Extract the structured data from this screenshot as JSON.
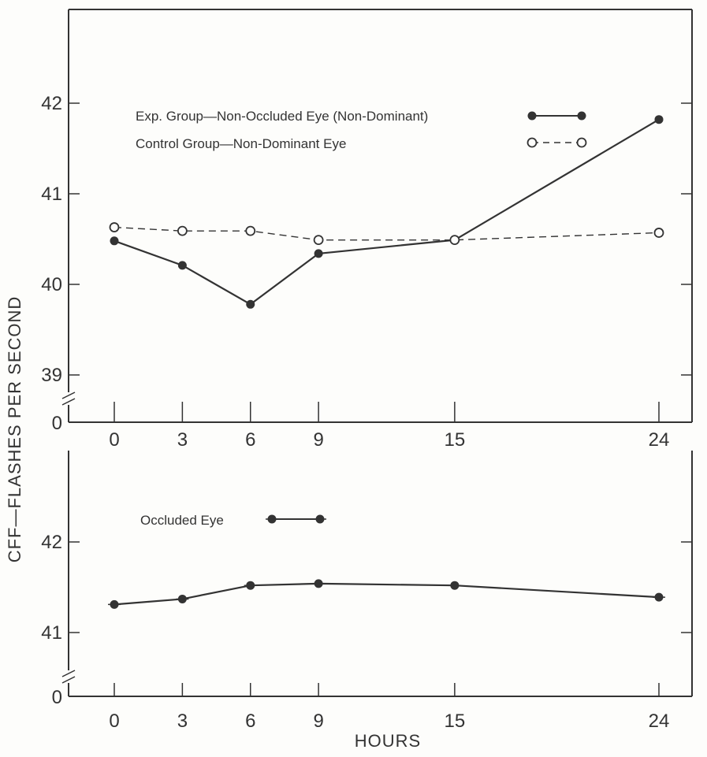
{
  "chart_data": [
    {
      "type": "line",
      "panel": "top",
      "x": [
        0,
        3,
        6,
        9,
        15,
        24
      ],
      "xticks": [
        "0",
        "3",
        "6",
        "9",
        "15",
        "24"
      ],
      "yticks": [
        "39",
        "40",
        "41",
        "42"
      ],
      "yzero_label": "0",
      "ylim": [
        38.8,
        43
      ],
      "series": [
        {
          "name": "Exp. Group—Non-Occluded Eye (Non-Dominant)",
          "values": [
            40.48,
            40.21,
            39.78,
            40.34,
            40.49,
            41.82
          ],
          "marker": "filled",
          "line": "solid"
        },
        {
          "name": "Control Group—Non-Dominant Eye",
          "values": [
            40.63,
            40.59,
            40.59,
            40.49,
            40.49,
            40.57
          ],
          "marker": "open",
          "line": "dashed"
        }
      ]
    },
    {
      "type": "line",
      "panel": "bottom",
      "x": [
        0,
        3,
        6,
        9,
        15,
        24
      ],
      "xticks": [
        "0",
        "3",
        "6",
        "9",
        "15",
        "24"
      ],
      "yticks": [
        "41",
        "42"
      ],
      "yzero_label": "0",
      "ylim": [
        40.45,
        43.4
      ],
      "series": [
        {
          "name": "Occluded Eye",
          "values": [
            41.31,
            41.37,
            41.52,
            41.54,
            41.52,
            41.39
          ],
          "marker": "cross-filled",
          "line": "solid"
        }
      ]
    }
  ],
  "ylabel": "CFF—FLASHES PER SECOND",
  "xlabel": "HOURS",
  "colors": {
    "ink": "#333333",
    "background": "#fdfdfb"
  }
}
